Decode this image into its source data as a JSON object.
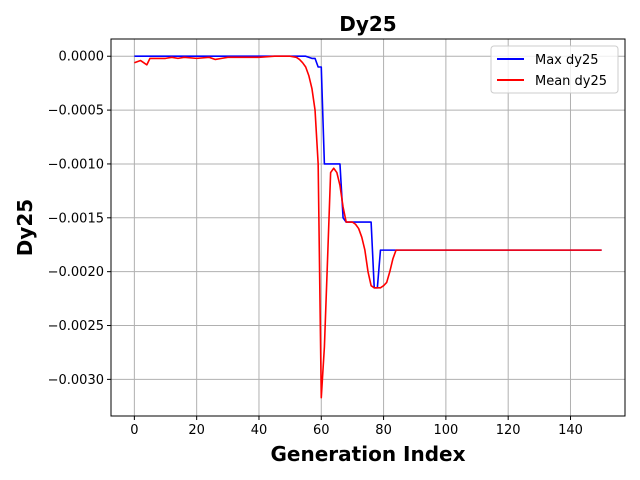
{
  "chart_data": {
    "type": "line",
    "title": "Dy25",
    "xlabel": "Generation Index",
    "ylabel": "Dy25",
    "xlim": [
      -7.5,
      157.5
    ],
    "ylim": [
      -0.00334,
      0.00016
    ],
    "xticks": [
      0,
      20,
      40,
      60,
      80,
      100,
      120,
      140
    ],
    "xtick_labels": [
      "0",
      "20",
      "40",
      "60",
      "80",
      "100",
      "120",
      "140"
    ],
    "yticks": [
      0.0,
      -0.0005,
      -0.001,
      -0.0015,
      -0.002,
      -0.0025,
      -0.003
    ],
    "ytick_labels": [
      "0.0000",
      "−0.0005",
      "−0.0010",
      "−0.0015",
      "−0.0020",
      "−0.0025",
      "−0.0030"
    ],
    "grid": true,
    "legend_position": "top-right",
    "series": [
      {
        "name": "Max dy25",
        "color": "#0000ff",
        "x": [
          0,
          55,
          57,
          58,
          59,
          60,
          61,
          62,
          66,
          67,
          68,
          70,
          76,
          77,
          78,
          79,
          84,
          150
        ],
        "y": [
          0.0,
          0.0,
          -2e-05,
          -2e-05,
          -0.0001,
          -0.0001,
          -0.001,
          -0.001,
          -0.001,
          -0.0015,
          -0.00154,
          -0.00154,
          -0.00154,
          -0.00215,
          -0.00215,
          -0.0018,
          -0.0018,
          -0.0018
        ]
      },
      {
        "name": "Mean dy25",
        "color": "#ff0000",
        "x": [
          0,
          2,
          3,
          4,
          5,
          6,
          8,
          10,
          12,
          14,
          16,
          20,
          24,
          26,
          28,
          30,
          35,
          40,
          45,
          48,
          50,
          52,
          53,
          54,
          55,
          56,
          57,
          58,
          59,
          60,
          61,
          62,
          63,
          64,
          65,
          66,
          67,
          68,
          70,
          71,
          72,
          73,
          74,
          75,
          76,
          77,
          78,
          79,
          80,
          81,
          82,
          83,
          84,
          86,
          90,
          150
        ],
        "y": [
          -6e-05,
          -4e-05,
          -6e-05,
          -8e-05,
          -2e-05,
          -2e-05,
          -2e-05,
          -2e-05,
          -1e-05,
          -2e-05,
          -1e-05,
          -2e-05,
          -1e-05,
          -3e-05,
          -2e-05,
          -1e-05,
          -1e-05,
          -1e-05,
          0.0,
          0.0,
          0.0,
          -1e-05,
          -3e-05,
          -6e-05,
          -0.0001,
          -0.00018,
          -0.0003,
          -0.0005,
          -0.001,
          -0.00317,
          -0.0027,
          -0.0019,
          -0.00108,
          -0.00104,
          -0.00108,
          -0.0012,
          -0.0014,
          -0.00154,
          -0.00154,
          -0.00156,
          -0.0016,
          -0.00168,
          -0.0018,
          -0.002,
          -0.00213,
          -0.00215,
          -0.00215,
          -0.00215,
          -0.00213,
          -0.0021,
          -0.002,
          -0.00188,
          -0.0018,
          -0.0018,
          -0.0018,
          -0.0018
        ]
      }
    ]
  }
}
